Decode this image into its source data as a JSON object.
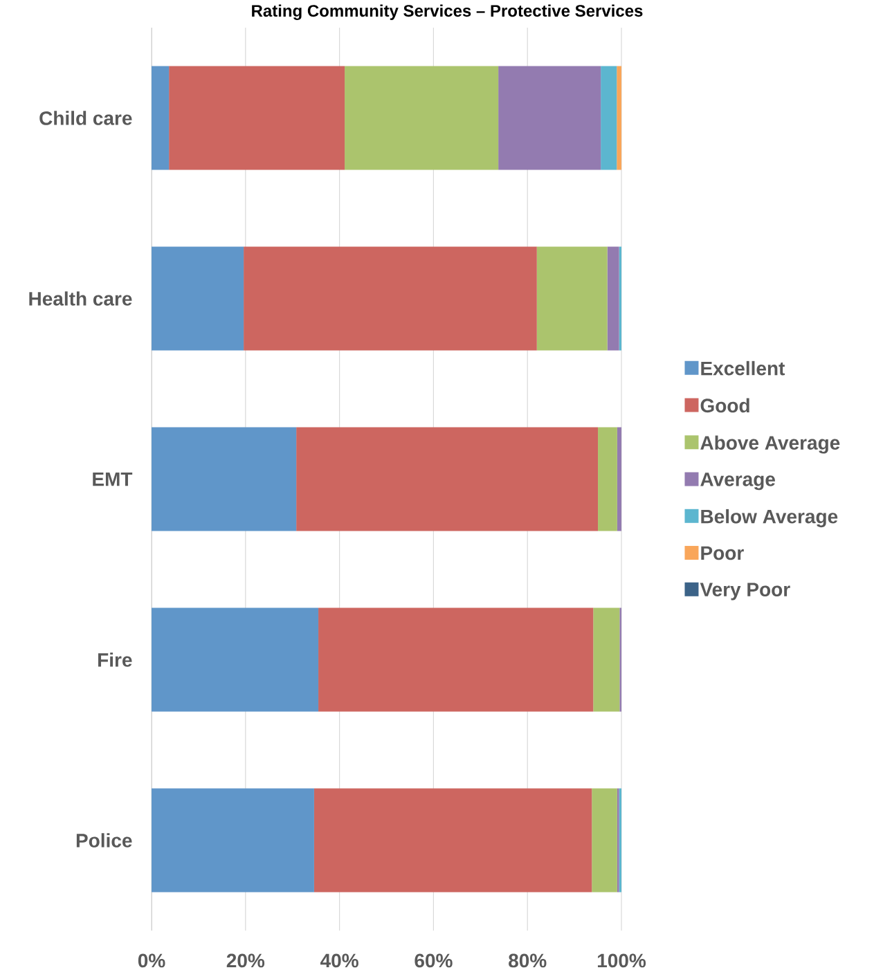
{
  "chart_data": {
    "type": "bar",
    "orientation": "horizontal",
    "stacked": true,
    "title": "Rating Community Services – Protective Services",
    "categories": [
      "Child care",
      "Health care",
      "EMT",
      "Fire",
      "Police"
    ],
    "series": [
      {
        "name": "Excellent",
        "color": "#6096c9",
        "values": [
          3.7,
          19.6,
          30.8,
          35.5,
          34.6
        ]
      },
      {
        "name": "Good",
        "color": "#cd6660",
        "values": [
          37.4,
          62.4,
          64.2,
          58.5,
          59.1
        ]
      },
      {
        "name": "Above Average",
        "color": "#abc46d",
        "values": [
          32.7,
          15.0,
          4.1,
          5.6,
          5.4
        ]
      },
      {
        "name": "Average",
        "color": "#937bb0",
        "values": [
          21.8,
          2.5,
          0.9,
          0.4,
          0.4
        ]
      },
      {
        "name": "Below Average",
        "color": "#5cb6cf",
        "values": [
          3.4,
          0.5,
          0,
          0,
          0.5
        ]
      },
      {
        "name": "Poor",
        "color": "#f9a65a",
        "values": [
          1.0,
          0,
          0,
          0,
          0
        ]
      },
      {
        "name": "Very Poor",
        "color": "#3c6388",
        "values": [
          0,
          0,
          0,
          0,
          0
        ]
      }
    ],
    "xlim": [
      0,
      100
    ],
    "xticks": [
      {
        "value": 0,
        "label": "0%"
      },
      {
        "value": 20,
        "label": "20%"
      },
      {
        "value": 40,
        "label": "40%"
      },
      {
        "value": 60,
        "label": "60%"
      },
      {
        "value": 80,
        "label": "80%"
      },
      {
        "value": 100,
        "label": "100%"
      }
    ],
    "grid": "x",
    "legend": "right"
  }
}
